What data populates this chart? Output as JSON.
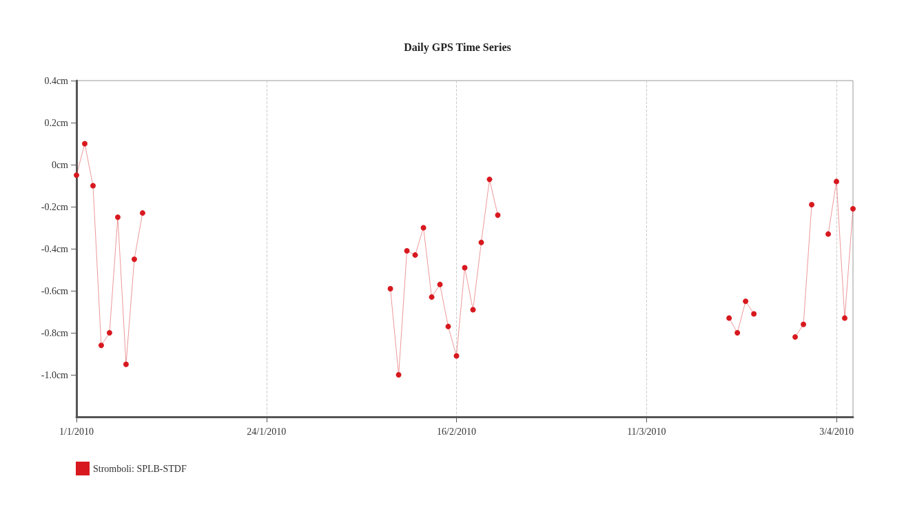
{
  "chart_data": {
    "type": "line",
    "title": "Daily GPS Time Series",
    "x": [
      "2010-01-01",
      "2010-01-02",
      "2010-01-03",
      "2010-01-04",
      "2010-01-05",
      "2010-01-06",
      "2010-01-07",
      "2010-01-08",
      "2010-01-09",
      "2010-01-10",
      "2010-02-08",
      "2010-02-09",
      "2010-02-10",
      "2010-02-11",
      "2010-02-12",
      "2010-02-13",
      "2010-02-14",
      "2010-02-15",
      "2010-02-16",
      "2010-02-17",
      "2010-02-18",
      "2010-02-19",
      "2010-02-20",
      "2010-02-21",
      "2010-02-22",
      "2010-03-21",
      "2010-03-22",
      "2010-03-23",
      "2010-03-24",
      "2010-03-25",
      "2010-03-29",
      "2010-03-30",
      "2010-03-31",
      "2010-04-01",
      "2010-04-02",
      "2010-04-03",
      "2010-04-04",
      "2010-04-05"
    ],
    "series": [
      {
        "name": "Stromboli: SPLB-STDF",
        "color": "#d7191f",
        "values": [
          -0.05,
          0.1,
          -0.1,
          -0.86,
          -0.8,
          -0.25,
          -0.95,
          -0.45,
          -0.23,
          null,
          -0.59,
          -1.0,
          -0.41,
          -0.43,
          -0.3,
          -0.63,
          -0.57,
          -0.77,
          -0.91,
          -0.49,
          -0.69,
          -0.37,
          -0.07,
          -0.24,
          null,
          -0.73,
          -0.8,
          -0.65,
          -0.71,
          null,
          -0.82,
          -0.76,
          -0.19,
          null,
          -0.33,
          -0.08,
          -0.73,
          -0.21
        ]
      }
    ],
    "xlim": [
      "2010-01-01",
      "2010-04-05"
    ],
    "xticks": [
      {
        "value": "2010-01-01",
        "label": "1/1/2010"
      },
      {
        "value": "2010-01-24",
        "label": "24/1/2010"
      },
      {
        "value": "2010-02-16",
        "label": "16/2/2010"
      },
      {
        "value": "2010-03-11",
        "label": "11/3/2010"
      },
      {
        "value": "2010-04-03",
        "label": "3/4/2010"
      }
    ],
    "ylim": [
      -1.2,
      0.4
    ],
    "yticks": [
      {
        "value": -1.0,
        "label": "-1.0cm"
      },
      {
        "value": -0.8,
        "label": "-0.8cm"
      },
      {
        "value": -0.6,
        "label": "-0.6cm"
      },
      {
        "value": -0.4,
        "label": "-0.4cm"
      },
      {
        "value": -0.2,
        "label": "-0.2cm"
      },
      {
        "value": 0,
        "label": "0cm"
      },
      {
        "value": 0.2,
        "label": "0.2cm"
      },
      {
        "value": 0.4,
        "label": "0.4cm"
      }
    ],
    "grid": "x",
    "legend": "bottom left",
    "marker": "circle",
    "line_style": "solid"
  }
}
